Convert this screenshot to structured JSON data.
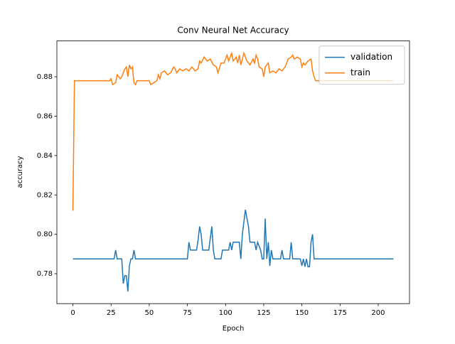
{
  "chart_data": {
    "type": "line",
    "title": "Conv Neural Net Accuracy",
    "x_label": "Epoch",
    "y_label": "accuracy",
    "xlim": [
      -10.5,
      220.5
    ],
    "ylim": [
      0.7648,
      0.8982
    ],
    "xticks": [
      0,
      25,
      50,
      75,
      100,
      125,
      150,
      175,
      200
    ],
    "yticks": [
      0.78,
      {
        "value": 0.8,
        "label": "0.80"
      },
      0.82,
      0.84,
      0.86,
      0.88
    ],
    "legend": "upper right",
    "series": [
      {
        "name": "validation",
        "color": "#1f77b4",
        "x": [
          0,
          27,
          28,
          29,
          32,
          33,
          34,
          35,
          36,
          37,
          38,
          39,
          40,
          41,
          75,
          76,
          77,
          81,
          82,
          83,
          84,
          85,
          89,
          91,
          92,
          93,
          97,
          98,
          102,
          103,
          104,
          105,
          109,
          110,
          111,
          113,
          115,
          116,
          119,
          120,
          121,
          123,
          124,
          125,
          126,
          127,
          128,
          129,
          130,
          131,
          136,
          137,
          138,
          142,
          143,
          144,
          149,
          150,
          151,
          152,
          153,
          154,
          155,
          156,
          157,
          158,
          210
        ],
        "values": [
          0.7875,
          0.7875,
          0.792,
          0.7875,
          0.7875,
          0.775,
          0.779,
          0.779,
          0.771,
          0.784,
          0.7875,
          0.7875,
          0.792,
          0.7875,
          0.7875,
          0.796,
          0.792,
          0.792,
          0.797,
          0.804,
          0.8,
          0.792,
          0.792,
          0.804,
          0.792,
          0.7875,
          0.7875,
          0.792,
          0.792,
          0.796,
          0.792,
          0.796,
          0.796,
          0.7875,
          0.8,
          0.8125,
          0.804,
          0.796,
          0.796,
          0.792,
          0.796,
          0.792,
          0.7875,
          0.7875,
          0.808,
          0.7875,
          0.796,
          0.784,
          0.792,
          0.7875,
          0.7875,
          0.792,
          0.7875,
          0.7875,
          0.796,
          0.7875,
          0.7875,
          0.784,
          0.7875,
          0.7835,
          0.7875,
          0.7835,
          0.7835,
          0.796,
          0.8,
          0.7875,
          0.7875
        ]
      },
      {
        "name": "train",
        "color": "#ff7f0e",
        "x": [
          0,
          1,
          24,
          25,
          26,
          28,
          29,
          31,
          32,
          34,
          35,
          36,
          37,
          38,
          39,
          40,
          41,
          42,
          50,
          51,
          53,
          55,
          56,
          57,
          58,
          60,
          62,
          64,
          66,
          67,
          68,
          70,
          72,
          74,
          76,
          78,
          80,
          82,
          83,
          84,
          86,
          88,
          90,
          92,
          94,
          95,
          97,
          99,
          101,
          102,
          103,
          104,
          105,
          107,
          108,
          109,
          110,
          112,
          114,
          116,
          118,
          119,
          120,
          121,
          122,
          124,
          125,
          126,
          128,
          129,
          131,
          133,
          135,
          137,
          139,
          141,
          143,
          144,
          145,
          147,
          149,
          150,
          151,
          152,
          154,
          156,
          157,
          158,
          159,
          210
        ],
        "values": [
          0.812,
          0.878,
          0.878,
          0.879,
          0.876,
          0.877,
          0.881,
          0.879,
          0.88,
          0.884,
          0.885,
          0.88,
          0.886,
          0.884,
          0.885,
          0.877,
          0.876,
          0.878,
          0.878,
          0.876,
          0.877,
          0.878,
          0.881,
          0.879,
          0.882,
          0.883,
          0.881,
          0.882,
          0.885,
          0.884,
          0.882,
          0.884,
          0.883,
          0.884,
          0.883,
          0.885,
          0.883,
          0.884,
          0.888,
          0.887,
          0.89,
          0.888,
          0.889,
          0.886,
          0.885,
          0.882,
          0.887,
          0.887,
          0.891,
          0.888,
          0.89,
          0.892,
          0.888,
          0.89,
          0.887,
          0.891,
          0.886,
          0.892,
          0.888,
          0.886,
          0.889,
          0.887,
          0.891,
          0.889,
          0.885,
          0.884,
          0.88,
          0.885,
          0.887,
          0.882,
          0.883,
          0.882,
          0.884,
          0.883,
          0.885,
          0.889,
          0.89,
          0.891,
          0.889,
          0.89,
          0.889,
          0.885,
          0.887,
          0.886,
          0.888,
          0.889,
          0.883,
          0.88,
          0.878,
          0.878
        ]
      }
    ]
  }
}
